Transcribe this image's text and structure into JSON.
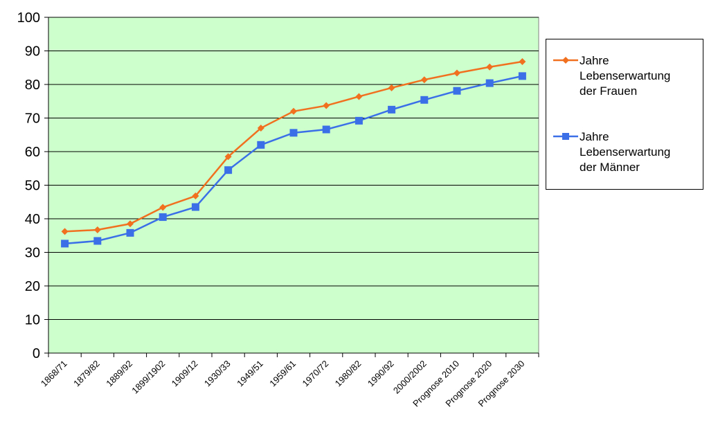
{
  "chart_data": {
    "type": "line",
    "title": "",
    "xlabel": "",
    "ylabel": "",
    "ylim": [
      0,
      100
    ],
    "yticks": [
      0,
      10,
      20,
      30,
      40,
      50,
      60,
      70,
      80,
      90,
      100
    ],
    "grid": "horizontal",
    "plot_background": "#ccffcc",
    "legend_position": "right",
    "categories": [
      "1868/71",
      "1879/82",
      "1889/92",
      "1899/1902",
      "1909/12",
      "1930/33",
      "1949/51",
      "1959/61",
      "1970/72",
      "1980/82",
      "1990/92",
      "2000/2002",
      "Prognose 2010",
      "Prognose 2020",
      "Prognose 2030"
    ],
    "series": [
      {
        "name": "Jahre\nLebenserwartung\nder Frauen",
        "color": "#f07020",
        "marker": "diamond",
        "values": [
          36.2,
          36.7,
          38.5,
          43.4,
          46.8,
          58.5,
          67.0,
          72.0,
          73.7,
          76.4,
          79.0,
          81.4,
          83.4,
          85.2,
          86.8
        ]
      },
      {
        "name": " Jahre\nLebenserwartung\nder Männer",
        "color": "#3a6fe8",
        "marker": "square",
        "values": [
          32.6,
          33.4,
          35.8,
          40.5,
          43.5,
          54.5,
          62.0,
          65.6,
          66.6,
          69.2,
          72.5,
          75.4,
          78.1,
          80.4,
          82.5
        ]
      }
    ]
  }
}
